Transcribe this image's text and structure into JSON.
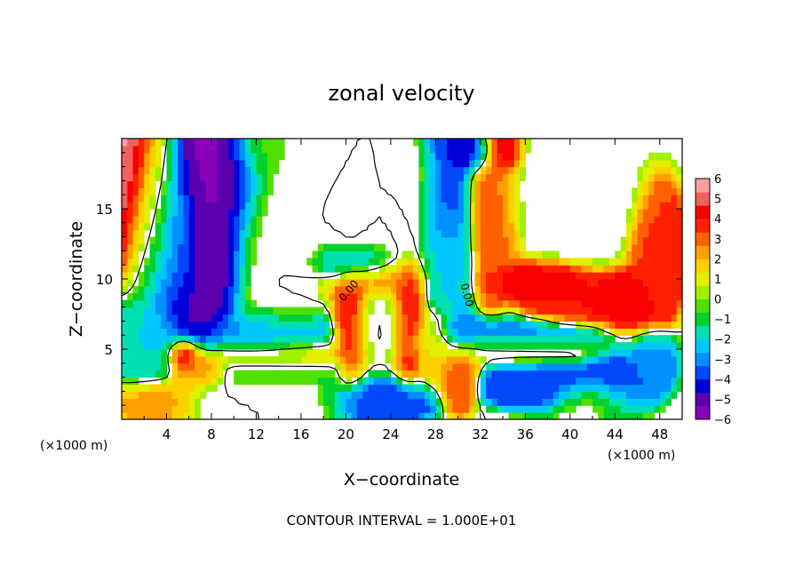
{
  "chart_data": {
    "type": "heatmap",
    "title": "zonal velocity",
    "xlabel": "X−coordinate",
    "ylabel": "Z−coordinate",
    "x_unit": "(×1000 m)",
    "y_unit": "(×1000 m)",
    "xlim": [
      0,
      50
    ],
    "ylim": [
      0,
      20
    ],
    "x_ticks": [
      4,
      8,
      12,
      16,
      20,
      24,
      28,
      32,
      36,
      40,
      44,
      48
    ],
    "y_ticks": [
      5,
      10,
      15
    ],
    "x_tick_labels": [
      "4",
      "8",
      "12",
      "16",
      "20",
      "24",
      "28",
      "32",
      "36",
      "40",
      "44",
      "48"
    ],
    "y_tick_labels": [
      "5",
      "10",
      "15"
    ],
    "colorbar": {
      "min": -6,
      "max": 6,
      "ticks": [
        6,
        5,
        4,
        3,
        2,
        1,
        0,
        -1,
        -2,
        -3,
        -4,
        -5,
        -6
      ],
      "tick_labels": [
        "6",
        "5",
        "4",
        "3",
        "2",
        "1",
        "0",
        "−1",
        "−2",
        "−3",
        "−4",
        "−5",
        "−6"
      ],
      "colors": [
        "#8b00b8",
        "#5a00b0",
        "#0000d8",
        "#0048f8",
        "#0090ff",
        "#00c8ff",
        "#00e0b0",
        "#00d030",
        "#50e000",
        "#a0f000",
        "#e0f000",
        "#ffd000",
        "#ffa000",
        "#ff6000",
        "#ff2000",
        "#f80000",
        "#f06060",
        "#f8a0a0"
      ]
    },
    "contour_labels": [
      "0.00",
      "0.00"
    ],
    "fields": [
      {
        "x": 0.5,
        "z": 18,
        "v": 5.5,
        "sx": 1.5,
        "sz": 4
      },
      {
        "x": 2.5,
        "z": 15,
        "v": 1.0,
        "sx": 1.5,
        "sz": 4
      },
      {
        "x": 4.5,
        "z": 12,
        "v": -3.0,
        "sx": 2,
        "sz": 4
      },
      {
        "x": 6.5,
        "z": 8.5,
        "v": -5.0,
        "sx": 2,
        "sz": 2
      },
      {
        "x": 9,
        "z": 17,
        "v": -5.5,
        "sx": 2.5,
        "sz": 3
      },
      {
        "x": 8,
        "z": 12,
        "v": -5.5,
        "sx": 2,
        "sz": 3
      },
      {
        "x": 14,
        "z": 13,
        "v": 0.0,
        "sx": 3,
        "sz": 6
      },
      {
        "x": 13,
        "z": 19,
        "v": -0.5,
        "sx": 2,
        "sz": 1.5
      },
      {
        "x": 2,
        "z": 5,
        "v": -2.0,
        "sx": 2,
        "sz": 2
      },
      {
        "x": 5.5,
        "z": 4.5,
        "v": 4.5,
        "sx": 1,
        "sz": 0.8
      },
      {
        "x": 7,
        "z": 3.5,
        "v": 3.0,
        "sx": 1.5,
        "sz": 0.8
      },
      {
        "x": 3,
        "z": 1.5,
        "v": 2.5,
        "sx": 2.5,
        "sz": 1
      },
      {
        "x": 13,
        "z": 6,
        "v": -3.0,
        "sx": 4,
        "sz": 1.2
      },
      {
        "x": 14,
        "z": 4.5,
        "v": 2.0,
        "sx": 5,
        "sz": 0.8
      },
      {
        "x": 14,
        "z": 3.5,
        "v": -1.0,
        "sx": 5,
        "sz": 0.8
      },
      {
        "x": 12,
        "z": 1.5,
        "v": 0.0,
        "sx": 5,
        "sz": 1.2
      },
      {
        "x": 22.5,
        "z": 10,
        "v": 4.0,
        "sx": 3,
        "sz": 1
      },
      {
        "x": 20.5,
        "z": 7,
        "v": 4.5,
        "sx": 1,
        "sz": 3
      },
      {
        "x": 25.5,
        "z": 7,
        "v": 4.5,
        "sx": 1,
        "sz": 3
      },
      {
        "x": 23,
        "z": 7,
        "v": 0.0,
        "sx": 2,
        "sz": 2.5
      },
      {
        "x": 21,
        "z": 11,
        "v": -4.0,
        "sx": 2.5,
        "sz": 1
      },
      {
        "x": 23,
        "z": 14,
        "v": 0.0,
        "sx": 4,
        "sz": 3
      },
      {
        "x": 24,
        "z": 17.5,
        "v": 0.0,
        "sx": 3,
        "sz": 2
      },
      {
        "x": 29,
        "z": 16,
        "v": -4.0,
        "sx": 1.5,
        "sz": 4
      },
      {
        "x": 29,
        "z": 11,
        "v": -2.0,
        "sx": 1.5,
        "sz": 3
      },
      {
        "x": 31,
        "z": 19,
        "v": -5.0,
        "sx": 1.5,
        "sz": 1
      },
      {
        "x": 33,
        "z": 15,
        "v": 3.0,
        "sx": 1.5,
        "sz": 4
      },
      {
        "x": 34,
        "z": 19,
        "v": 5.0,
        "sx": 1,
        "sz": 1
      },
      {
        "x": 28,
        "z": 5,
        "v": 1.5,
        "sx": 1.5,
        "sz": 2
      },
      {
        "x": 30,
        "z": 6.5,
        "v": -3.5,
        "sx": 1,
        "sz": 1
      },
      {
        "x": 30,
        "z": 3,
        "v": 3.5,
        "sx": 1.2,
        "sz": 1.5
      },
      {
        "x": 23.5,
        "z": 1.5,
        "v": -4.0,
        "sx": 3,
        "sz": 1
      },
      {
        "x": 36,
        "z": 6,
        "v": -3.0,
        "sx": 6,
        "sz": 0.8
      },
      {
        "x": 36,
        "z": 5,
        "v": 0.5,
        "sx": 6,
        "sz": 0.7
      },
      {
        "x": 38,
        "z": 2.5,
        "v": -4.0,
        "sx": 4,
        "sz": 1
      },
      {
        "x": 37,
        "z": 10,
        "v": 4.5,
        "sx": 3,
        "sz": 0.8
      },
      {
        "x": 41,
        "z": 8,
        "v": 4.0,
        "sx": 3,
        "sz": 1
      },
      {
        "x": 40,
        "z": 16,
        "v": 0.0,
        "sx": 4,
        "sz": 3
      },
      {
        "x": 45,
        "z": 8,
        "v": 4.5,
        "sx": 2,
        "sz": 1.5
      },
      {
        "x": 48,
        "z": 12,
        "v": 3.5,
        "sx": 1.5,
        "sz": 3
      },
      {
        "x": 44,
        "z": 3,
        "v": -4.0,
        "sx": 2,
        "sz": 1.5
      },
      {
        "x": 47,
        "z": 4,
        "v": -3.0,
        "sx": 1.5,
        "sz": 1.5
      },
      {
        "x": 42,
        "z": 1.5,
        "v": 0.0,
        "sx": 2.5,
        "sz": 1
      }
    ]
  },
  "footer_text": "CONTOUR INTERVAL = 1.000E+01"
}
